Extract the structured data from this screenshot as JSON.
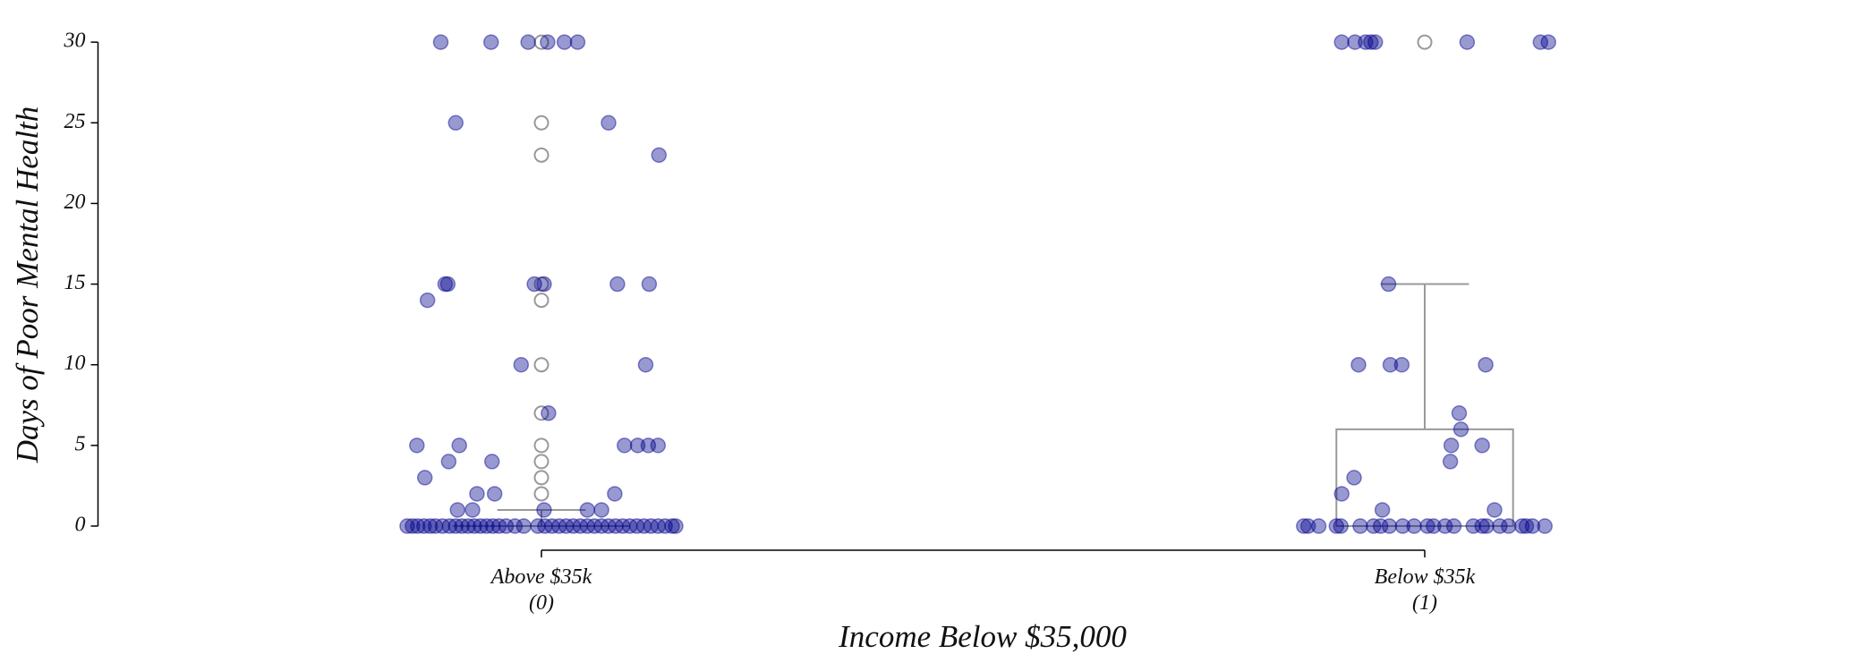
{
  "chart_data": {
    "type": "box-strip",
    "x_label": "Income Below $35,000",
    "y_label": "Days of Poor Mental Health",
    "xlim": [
      -0.5,
      1.5
    ],
    "xticks": [
      {
        "value": 0,
        "label": "Above $35k\n(0)"
      },
      {
        "value": 1,
        "label": "Below $35k\n(1)"
      }
    ],
    "ylim": [
      -1.5,
      30.5
    ],
    "yticks": [
      0,
      5,
      10,
      15,
      20,
      25,
      30
    ],
    "grid": false,
    "box_color": "#999999",
    "boxes": [
      {
        "q1": 0,
        "median": 0,
        "q3": 0,
        "whisker_low": 0,
        "whisker_high": 1,
        "outliers": [
          30,
          25,
          23,
          15,
          14,
          10,
          7,
          5,
          4,
          3,
          2
        ]
      },
      {
        "q1": 0,
        "median": 0,
        "q3": 6,
        "whisker_low": 0,
        "whisker_high": 15,
        "outliers": [
          30
        ]
      }
    ],
    "points": {
      "color": "#00008b",
      "x": [
        -0.114,
        -0.057,
        -0.015,
        0.007,
        0.026,
        0.041,
        -0.097,
        0.076,
        0.133,
        -0.109,
        -0.106,
        -0.008,
        0.003,
        0.086,
        0.122,
        -0.129,
        -0.023,
        0.118,
        0.008,
        -0.141,
        -0.093,
        0.094,
        0.109,
        0.121,
        0.132,
        -0.105,
        -0.056,
        -0.132,
        -0.073,
        -0.053,
        0.083,
        -0.095,
        -0.078,
        0.003,
        0.052,
        0.068,
        -0.152,
        -0.146,
        -0.14,
        -0.133,
        -0.126,
        -0.12,
        -0.112,
        -0.104,
        -0.097,
        -0.09,
        -0.083,
        -0.076,
        -0.069,
        -0.062,
        -0.055,
        -0.048,
        -0.04,
        -0.03,
        -0.02,
        -0.004,
        0.004,
        0.012,
        0.02,
        0.028,
        0.036,
        0.044,
        0.052,
        0.06,
        0.068,
        0.076,
        0.084,
        0.092,
        0.1,
        0.108,
        0.116,
        0.124,
        0.132,
        0.14,
        0.148,
        0.152,
        0.906,
        0.921,
        0.933,
        0.939,
        0.944,
        1.048,
        1.131,
        1.14,
        0.959,
        0.925,
        0.961,
        0.974,
        1.069,
        1.039,
        1.041,
        1.03,
        1.065,
        1.029,
        0.92,
        0.906,
        0.952,
        1.079,
        0.863,
        0.868,
        0.88,
        0.9,
        0.905,
        0.927,
        0.942,
        0.95,
        0.96,
        0.975,
        0.988,
        1.003,
        1.01,
        1.023,
        1.033,
        1.055,
        1.065,
        1.07,
        1.085,
        1.095,
        1.11,
        1.115,
        1.122,
        1.136
      ],
      "y": [
        30,
        30,
        30,
        30,
        30,
        30,
        25,
        25,
        23,
        15,
        15,
        15,
        15,
        15,
        15,
        14,
        10,
        10,
        7,
        5,
        5,
        5,
        5,
        5,
        5,
        4,
        4,
        3,
        2,
        2,
        2,
        1,
        1,
        1,
        1,
        1,
        0,
        0,
        0,
        0,
        0,
        0,
        0,
        0,
        0,
        0,
        0,
        0,
        0,
        0,
        0,
        0,
        0,
        0,
        0,
        0,
        0,
        0,
        0,
        0,
        0,
        0,
        0,
        0,
        0,
        0,
        0,
        0,
        0,
        0,
        0,
        0,
        0,
        0,
        0,
        0,
        30,
        30,
        30,
        30,
        30,
        30,
        30,
        30,
        15,
        10,
        10,
        10,
        10,
        7,
        6,
        5,
        5,
        4,
        3,
        2,
        1,
        1,
        0,
        0,
        0,
        0,
        0,
        0,
        0,
        0,
        0,
        0,
        0,
        0,
        0,
        0,
        0,
        0,
        0,
        0,
        0,
        0,
        0,
        0,
        0,
        0
      ]
    }
  }
}
